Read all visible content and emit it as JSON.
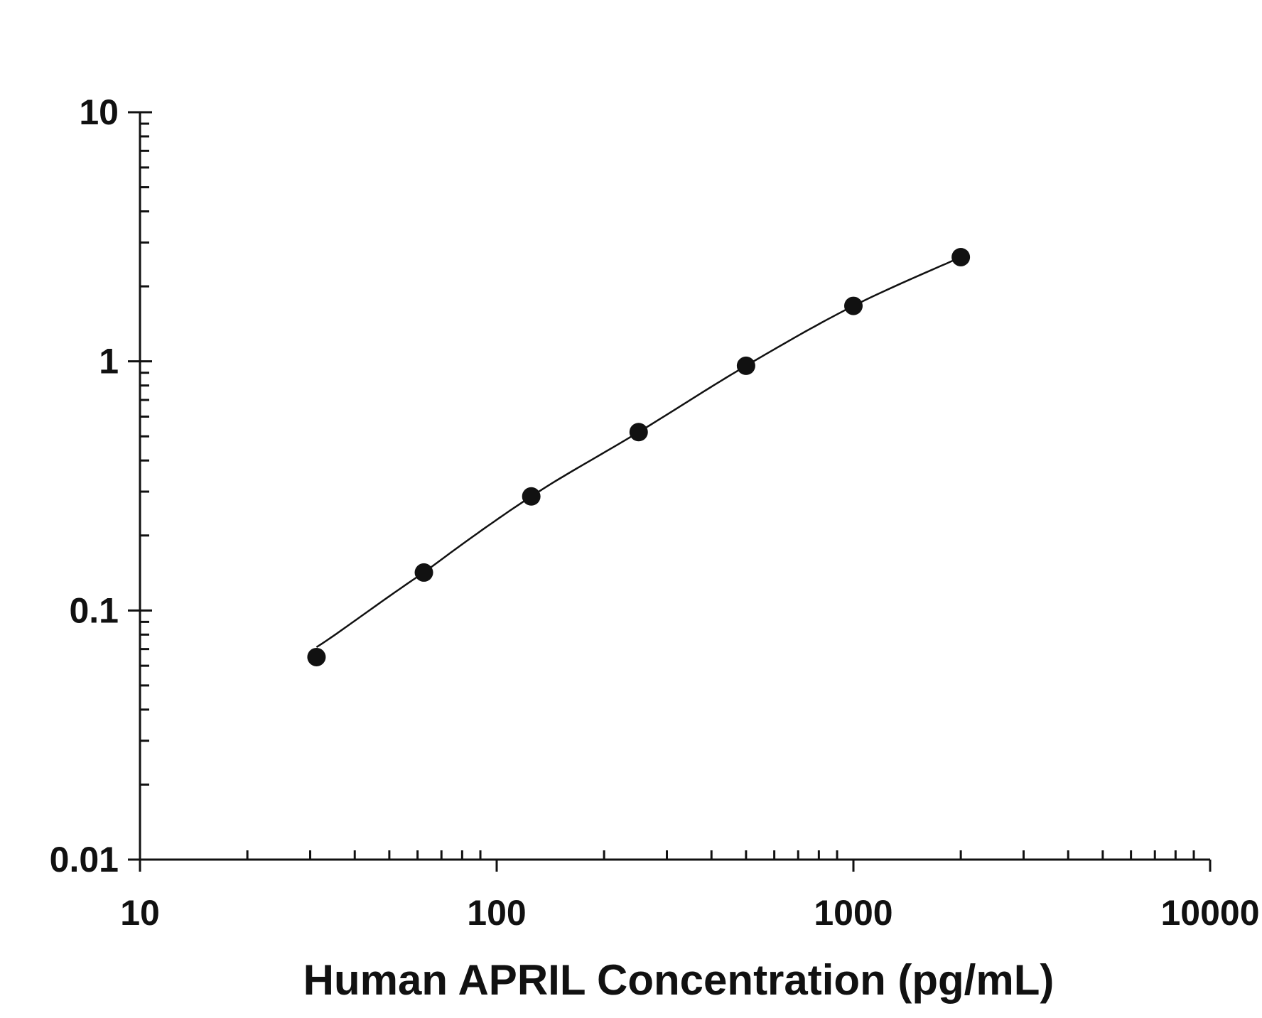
{
  "chart_data": {
    "type": "scatter",
    "title": "",
    "xlabel": "Human APRIL Concentration (pg/mL)",
    "ylabel": "",
    "x_scale": "log",
    "y_scale": "log",
    "xlim": [
      10,
      10000
    ],
    "ylim": [
      0.01,
      10
    ],
    "x_tick_labels": [
      "10",
      "100",
      "1000",
      "10000"
    ],
    "y_tick_labels": [
      "0.01",
      "0.1",
      "1",
      "10"
    ],
    "grid": false,
    "legend": "none",
    "series": [
      {
        "x": [
          31.25,
          62.5,
          125,
          250,
          500,
          1000,
          2000
        ],
        "y": [
          0.065,
          0.142,
          0.287,
          0.52,
          0.96,
          1.67,
          2.62
        ],
        "marker": "filled-circle",
        "fit_line": true
      }
    ],
    "colors": {
      "marker": "#111111",
      "line": "#111111",
      "axis": "#111111"
    }
  }
}
